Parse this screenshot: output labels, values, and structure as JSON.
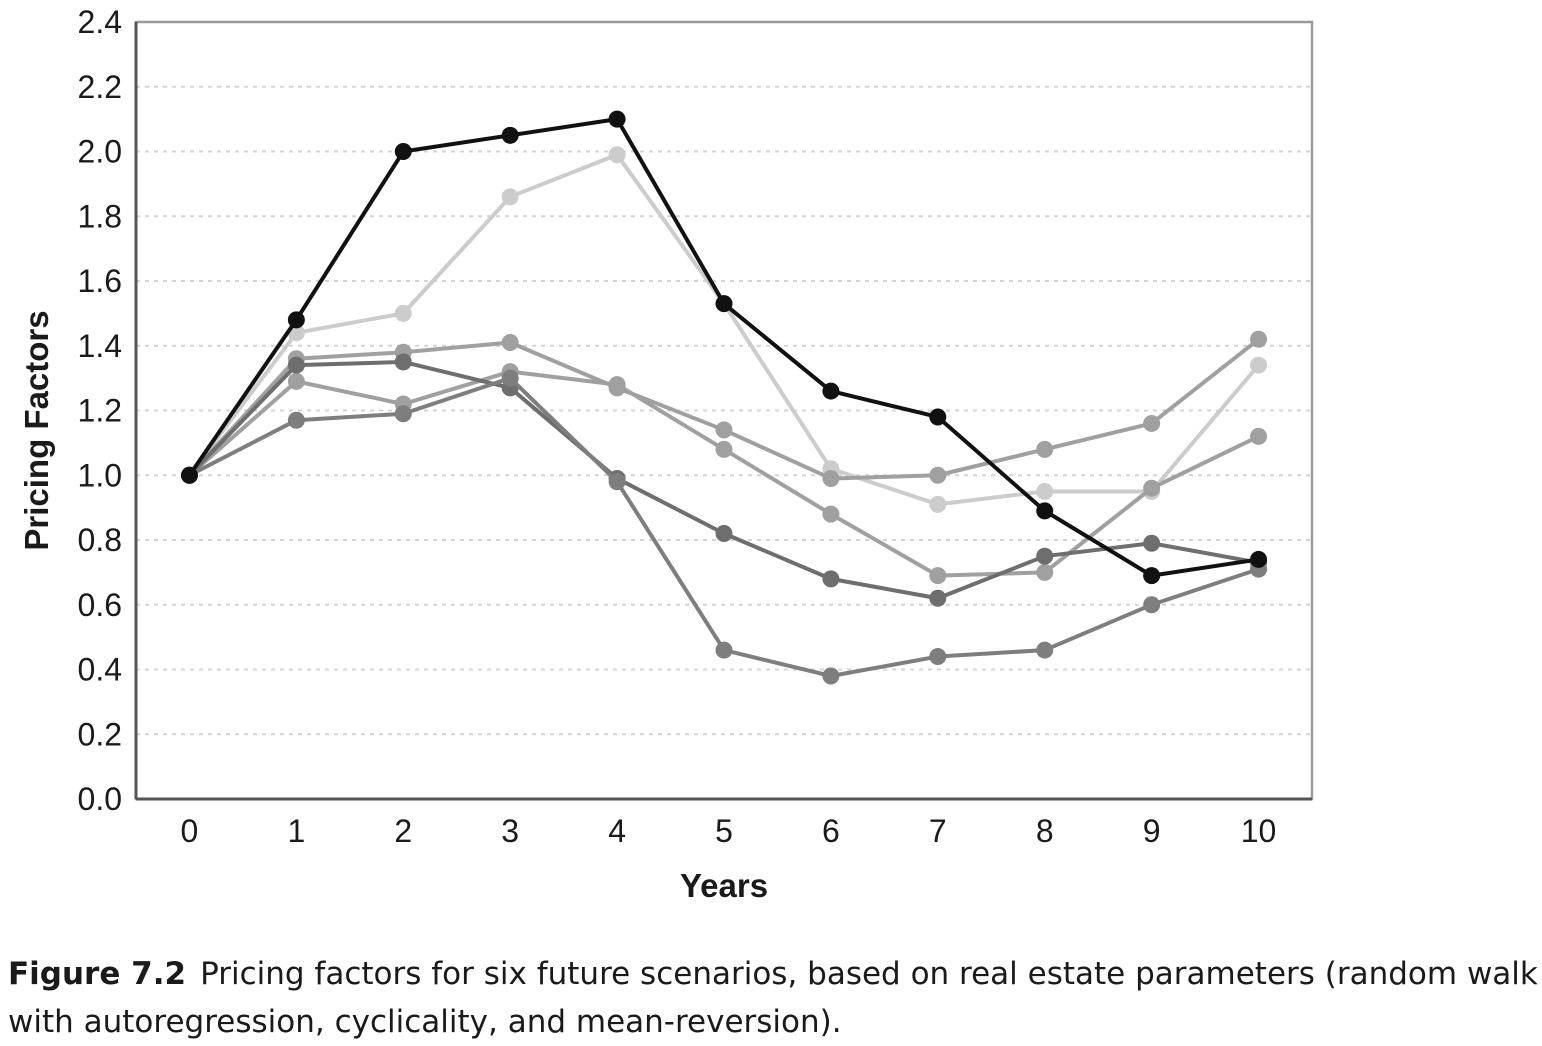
{
  "chart_data": {
    "type": "line",
    "xlabel": "Years",
    "ylabel": "Pricing Factors",
    "x": [
      0,
      1,
      2,
      3,
      4,
      5,
      6,
      7,
      8,
      9,
      10
    ],
    "xlim": [
      -0.5,
      10.5
    ],
    "ylim": [
      0,
      2.4
    ],
    "yticks": [
      "0.0",
      "0.2",
      "0.4",
      "0.6",
      "0.8",
      "1.0",
      "1.2",
      "1.4",
      "1.6",
      "1.8",
      "2.0",
      "2.2",
      "2.4"
    ],
    "xticks": [
      "0",
      "1",
      "2",
      "3",
      "4",
      "5",
      "6",
      "7",
      "8",
      "9",
      "10"
    ],
    "grid": "horizontal dashed",
    "series": [
      {
        "color": "#cccccc",
        "values": [
          1.0,
          1.44,
          1.5,
          1.86,
          1.99,
          1.53,
          1.02,
          0.91,
          0.95,
          0.95,
          1.34
        ]
      },
      {
        "color": "#a0a0a0",
        "values": [
          1.0,
          1.36,
          1.38,
          1.41,
          1.27,
          1.14,
          0.99,
          1.0,
          1.08,
          1.16,
          1.42
        ]
      },
      {
        "color": "#a0a0a0",
        "values": [
          1.0,
          1.29,
          1.22,
          1.32,
          1.28,
          1.08,
          0.88,
          0.69,
          0.7,
          0.96,
          1.12
        ]
      },
      {
        "color": "#6e6e6e",
        "values": [
          1.0,
          1.34,
          1.35,
          1.27,
          0.99,
          0.82,
          0.68,
          0.62,
          0.75,
          0.79,
          0.73
        ]
      },
      {
        "color": "#7e7e7e",
        "values": [
          1.0,
          1.17,
          1.19,
          1.3,
          0.98,
          0.46,
          0.38,
          0.44,
          0.46,
          0.6,
          0.71
        ]
      },
      {
        "color": "#111111",
        "values": [
          1.0,
          1.48,
          2.0,
          2.05,
          2.1,
          1.53,
          1.26,
          1.18,
          0.89,
          0.69,
          0.74
        ]
      }
    ]
  },
  "caption": {
    "label": "Figure 7.2",
    "text": "Pricing factors for six future scenarios, based on real estate parameters (random walk with autoregression, cyclicality, and mean-reversion)."
  }
}
